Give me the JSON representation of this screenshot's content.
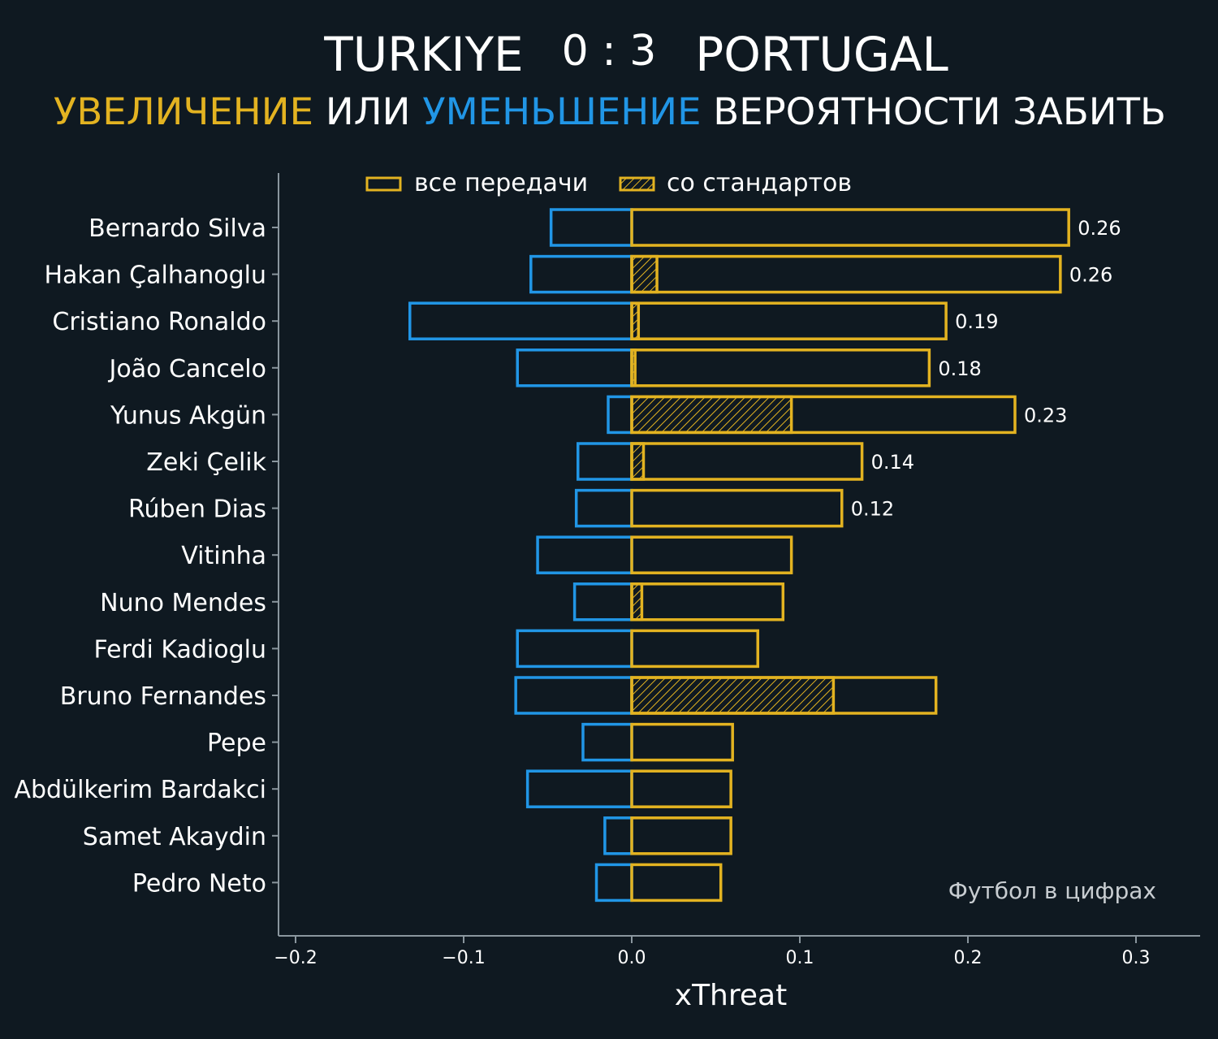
{
  "header": {
    "team_home": "TURKIYE",
    "score": "0 : 3",
    "team_away": "PORTUGAL",
    "subtitle_part1": "УВЕЛИЧЕНИЕ",
    "subtitle_part2": " ИЛИ ",
    "subtitle_part3": "УМЕНЬШЕНИЕ",
    "subtitle_part4": " ВЕРОЯТНОСТИ ЗАБИТЬ"
  },
  "colors": {
    "background": "#0f1921",
    "increase": "#e3b321",
    "decrease": "#2196e6",
    "text": "#ffffff",
    "axis": "#8a969e",
    "watermark": "#c8cdd1"
  },
  "legend": {
    "all_passes": "все передачи",
    "set_pieces": "со стандартов"
  },
  "watermark": "Футбол в цифрах",
  "chart_data": {
    "type": "bar",
    "orientation": "horizontal",
    "xlabel": "xThreat",
    "xlim": [
      -0.21,
      0.34
    ],
    "xticks": [
      -0.2,
      -0.1,
      0.0,
      0.1,
      0.2,
      0.3
    ],
    "xtick_labels": [
      "−0.2",
      "−0.1",
      "0.0",
      "0.1",
      "0.2",
      "0.3"
    ],
    "categories": [
      "Bernardo Silva",
      "Hakan Çalhanoglu",
      "Cristiano Ronaldo",
      "João Cancelo",
      "Yunus Akgün",
      "Zeki Çelik",
      "Rúben Dias",
      "Vitinha",
      "Nuno Mendes",
      "Ferdi Kadioglu",
      "Bruno Fernandes",
      "Pepe",
      "Abdülkerim Bardakci",
      "Samet Akaydin",
      "Pedro Neto"
    ],
    "series": [
      {
        "name": "все передачи",
        "values": [
          0.26,
          0.255,
          0.187,
          0.177,
          0.228,
          0.137,
          0.125,
          0.095,
          0.09,
          0.075,
          0.181,
          0.06,
          0.059,
          0.059,
          0.053
        ]
      },
      {
        "name": "со стандартов",
        "values": [
          0.0,
          0.015,
          0.004,
          0.002,
          0.095,
          0.007,
          0.0,
          0.0,
          0.006,
          0.0,
          0.12,
          0.0,
          0.0,
          0.0,
          0.0
        ]
      },
      {
        "values": [
          -0.048,
          -0.06,
          -0.132,
          -0.068,
          -0.014,
          -0.032,
          -0.033,
          -0.056,
          -0.034,
          -0.068,
          -0.069,
          -0.029,
          -0.062,
          -0.016,
          -0.021
        ]
      }
    ],
    "value_labels": [
      "0.26",
      "0.26",
      "0.19",
      "0.18",
      "0.23",
      "0.14",
      "0.12",
      "",
      "",
      "",
      "",
      "",
      "",
      "",
      ""
    ]
  }
}
